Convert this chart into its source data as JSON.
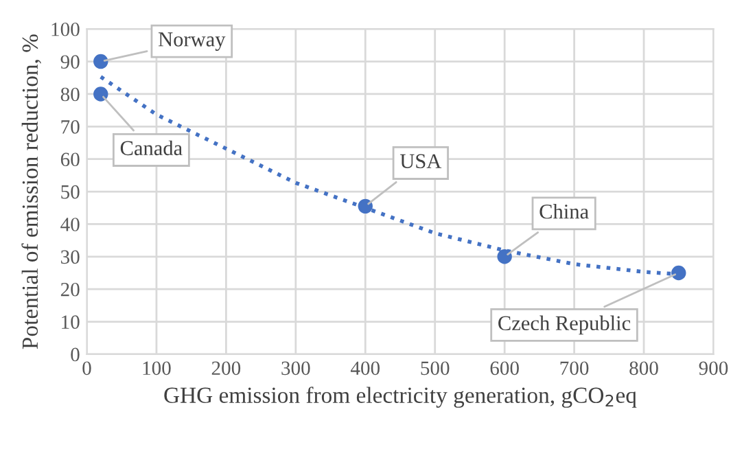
{
  "chart_data": {
    "type": "scatter",
    "xlabel": "GHG emission from electricity generation, gCO$_{2}$eq",
    "ylabel": "Potential of emission reduction, %",
    "xlim": [
      0,
      900
    ],
    "ylim": [
      0,
      100
    ],
    "xticks": [
      0,
      100,
      200,
      300,
      400,
      500,
      600,
      700,
      800,
      900
    ],
    "yticks": [
      0,
      10,
      20,
      30,
      40,
      50,
      60,
      70,
      80,
      90,
      100
    ],
    "grid": true,
    "marker": "circle",
    "series": [
      {
        "color": "#4472c4",
        "x": [
          20,
          20,
          400,
          600,
          850
        ],
        "values": [
          90,
          80,
          45.5,
          30,
          25
        ]
      },
      {
        "type": "line",
        "color": "#4472c4",
        "line_style": "dotted",
        "marker": "none",
        "x": [
          20,
          100,
          200,
          300,
          400,
          500,
          600,
          700,
          800,
          850
        ],
        "values": [
          85.3,
          73.7,
          63.2,
          52.7,
          45,
          37.2,
          31.9,
          27.7,
          25.3,
          24.6
        ]
      }
    ],
    "annotations": [
      {
        "text": "Norway",
        "x": 20,
        "y": 90
      },
      {
        "text": "Canada",
        "x": 20,
        "y": 80
      },
      {
        "text": "USA",
        "x": 400,
        "y": 45.5
      },
      {
        "text": "China",
        "x": 600,
        "y": 30
      },
      {
        "text": "Czech Republic",
        "x": 850,
        "y": 25
      }
    ]
  }
}
